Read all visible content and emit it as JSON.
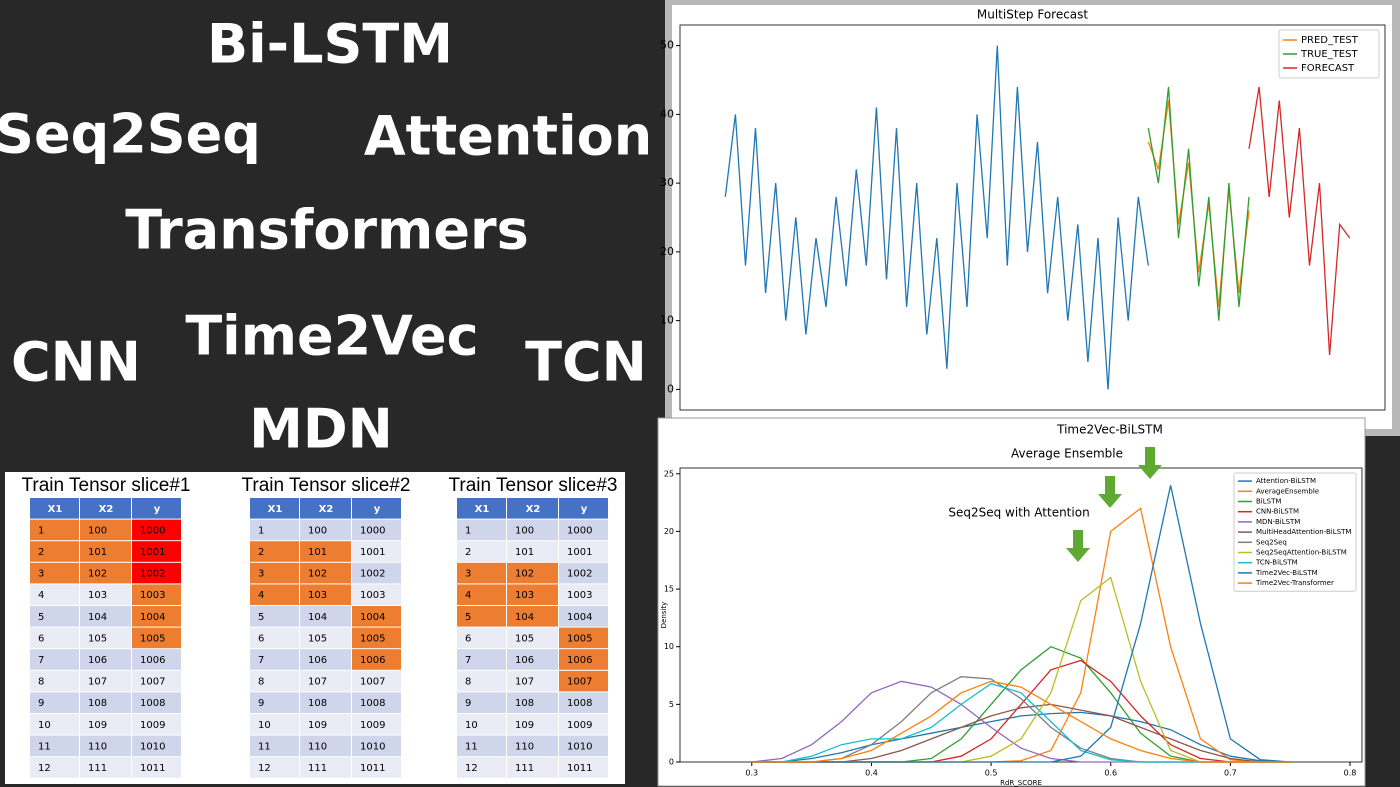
{
  "labels": [
    "Bi-LSTM",
    "Seq2Seq",
    "Attention",
    "Transformers",
    "Time2Vec",
    "CNN",
    "TCN",
    "MDN"
  ],
  "chart_data": [
    {
      "type": "line",
      "title": "MultiStep Forecast",
      "xlim": [
        -45,
        655
      ],
      "ylim": [
        -3,
        53
      ],
      "yticks": [
        0,
        10,
        20,
        30,
        40,
        50
      ],
      "legend": "upper right",
      "series": [
        {
          "color": "#1f77b4",
          "x": [
            0,
            10,
            20,
            30,
            40,
            50,
            60,
            70,
            80,
            90,
            100,
            110,
            120,
            130,
            140,
            150,
            160,
            170,
            180,
            190,
            200,
            210,
            220,
            230,
            240,
            250,
            260,
            270,
            280,
            290,
            300,
            310,
            320,
            330,
            340,
            350,
            360,
            370,
            380,
            390,
            400,
            410,
            420
          ],
          "values": [
            28,
            40,
            18,
            38,
            14,
            30,
            10,
            25,
            8,
            22,
            12,
            28,
            15,
            32,
            18,
            41,
            16,
            38,
            12,
            30,
            8,
            22,
            3,
            30,
            12,
            40,
            22,
            50,
            18,
            44,
            20,
            36,
            14,
            28,
            10,
            24,
            4,
            22,
            0,
            25,
            10,
            28,
            18
          ]
        },
        {
          "name": "PRED_TEST",
          "color": "#ff7f0e",
          "x": [
            420,
            430,
            440,
            450,
            460,
            470,
            480,
            490,
            500,
            510,
            520
          ],
          "values": [
            36,
            32,
            42,
            24,
            33,
            17,
            27,
            12,
            29,
            14,
            26
          ]
        },
        {
          "name": "TRUE_TEST",
          "color": "#2ca02c",
          "x": [
            420,
            430,
            440,
            450,
            460,
            470,
            480,
            490,
            500,
            510,
            520
          ],
          "values": [
            38,
            30,
            44,
            22,
            35,
            15,
            28,
            10,
            30,
            12,
            28
          ]
        },
        {
          "name": "FORECAST",
          "color": "#d62728",
          "x": [
            520,
            530,
            540,
            550,
            560,
            570,
            580,
            590,
            600,
            610,
            620
          ],
          "values": [
            35,
            44,
            28,
            42,
            25,
            38,
            18,
            30,
            5,
            24,
            22
          ]
        }
      ]
    },
    {
      "type": "line",
      "xlabel": "RdR_SCORE",
      "ylabel": "Density",
      "xlim": [
        0.24,
        0.81
      ],
      "ylim": [
        0,
        25.5
      ],
      "xticks": [
        0.3,
        0.4,
        0.5,
        0.6,
        0.7,
        0.8
      ],
      "yticks": [
        0,
        5,
        10,
        15,
        20,
        25
      ],
      "legend": "upper right",
      "annotations": [
        "Time2Vec-BiLSTM",
        "Average Ensemble",
        "Seq2Seq with Attention"
      ],
      "x": [
        0.3,
        0.325,
        0.35,
        0.375,
        0.4,
        0.425,
        0.45,
        0.475,
        0.5,
        0.525,
        0.55,
        0.575,
        0.6,
        0.625,
        0.65,
        0.675,
        0.7,
        0.725,
        0.75
      ],
      "series": [
        {
          "name": "Attention-BiLSTM",
          "color": "#1f77b4",
          "values": [
            0,
            0,
            0.3,
            0.8,
            1.5,
            2,
            2.5,
            3,
            3.5,
            4,
            4.2,
            4.3,
            4,
            3.5,
            2.8,
            1.5,
            0.5,
            0.1,
            0
          ]
        },
        {
          "name": "AverageEnsemble",
          "color": "#ff7f0e",
          "values": [
            0,
            0,
            0,
            0,
            0,
            0,
            0,
            0,
            0,
            0.1,
            1,
            6,
            20,
            22,
            10,
            2,
            0.2,
            0,
            0
          ]
        },
        {
          "name": "BiLSTM",
          "color": "#2ca02c",
          "values": [
            0,
            0,
            0,
            0,
            0,
            0,
            0.3,
            2,
            5,
            8,
            10,
            9,
            6,
            2.5,
            0.5,
            0,
            0,
            0,
            0
          ]
        },
        {
          "name": "CNN-BiLSTM",
          "color": "#d62728",
          "values": [
            0,
            0,
            0,
            0,
            0,
            0,
            0,
            0.5,
            2,
            5,
            8,
            8.8,
            7,
            4,
            1.5,
            0.3,
            0,
            0,
            0
          ]
        },
        {
          "name": "MDN-BiLSTM",
          "color": "#9467bd",
          "values": [
            0,
            0.3,
            1.5,
            3.5,
            6,
            7,
            6.5,
            5,
            3,
            1.2,
            0.3,
            0,
            0,
            0,
            0,
            0,
            0,
            0,
            0
          ]
        },
        {
          "name": "MultiHeadAttention-BiLSTM",
          "color": "#8c564b",
          "values": [
            0,
            0,
            0,
            0,
            0.3,
            1,
            2,
            3,
            4,
            4.7,
            5,
            4.5,
            4,
            3,
            2,
            1,
            0.3,
            0,
            0
          ]
        },
        {
          "name": "Seq2Seq",
          "color": "#7f7f7f",
          "values": [
            0,
            0,
            0,
            0.3,
            1.5,
            3.5,
            6,
            7.4,
            7.2,
            5.5,
            3,
            1.2,
            0.3,
            0,
            0,
            0,
            0,
            0,
            0
          ]
        },
        {
          "name": "Seq2SeqAttention-BiLSTM",
          "color": "#bcbd22",
          "values": [
            0,
            0,
            0,
            0,
            0,
            0,
            0,
            0,
            0.5,
            2,
            6,
            14,
            16,
            7,
            1,
            0,
            0,
            0,
            0
          ]
        },
        {
          "name": "TCN-BiLSTM",
          "color": "#17becf",
          "values": [
            0,
            0,
            0.5,
            1.5,
            2,
            2,
            3,
            5,
            6.8,
            6,
            3.5,
            1,
            0.2,
            0,
            0,
            0,
            0,
            0,
            0
          ]
        },
        {
          "name": "Time2Vec-BiLSTM",
          "color": "#1f77b4",
          "values": [
            0,
            0,
            0,
            0,
            0,
            0,
            0,
            0,
            0,
            0,
            0,
            0.5,
            3,
            12,
            24,
            12,
            2,
            0.2,
            0
          ]
        },
        {
          "name": "Time2Vec-Transformer",
          "color": "#ff7f0e",
          "values": [
            0,
            0,
            0,
            0.3,
            1,
            2.5,
            4,
            6,
            7,
            6.5,
            5,
            3.5,
            2,
            1,
            0.3,
            0,
            0,
            0,
            0
          ]
        }
      ]
    }
  ],
  "tables": [
    {
      "title": "Train Tensor slice#1",
      "header": [
        "X1",
        "X2",
        "y"
      ],
      "input_rows": [
        0,
        1,
        2
      ],
      "target_rows": [
        3,
        4,
        5
      ],
      "red_rows": [
        0,
        1,
        2
      ],
      "rows": [
        [
          "1",
          "100",
          "1000"
        ],
        [
          "2",
          "101",
          "1001"
        ],
        [
          "3",
          "102",
          "1002"
        ],
        [
          "4",
          "103",
          "1003"
        ],
        [
          "5",
          "104",
          "1004"
        ],
        [
          "6",
          "105",
          "1005"
        ],
        [
          "7",
          "106",
          "1006"
        ],
        [
          "8",
          "107",
          "1007"
        ],
        [
          "9",
          "108",
          "1008"
        ],
        [
          "10",
          "109",
          "1009"
        ],
        [
          "11",
          "110",
          "1010"
        ],
        [
          "12",
          "111",
          "1011"
        ]
      ]
    },
    {
      "title": "Train Tensor slice#2",
      "header": [
        "X1",
        "X2",
        "y"
      ],
      "input_rows": [
        1,
        2,
        3
      ],
      "target_rows": [
        4,
        5,
        6
      ],
      "red_rows": [],
      "rows": [
        [
          "1",
          "100",
          "1000"
        ],
        [
          "2",
          "101",
          "1001"
        ],
        [
          "3",
          "102",
          "1002"
        ],
        [
          "4",
          "103",
          "1003"
        ],
        [
          "5",
          "104",
          "1004"
        ],
        [
          "6",
          "105",
          "1005"
        ],
        [
          "7",
          "106",
          "1006"
        ],
        [
          "8",
          "107",
          "1007"
        ],
        [
          "9",
          "108",
          "1008"
        ],
        [
          "10",
          "109",
          "1009"
        ],
        [
          "11",
          "110",
          "1010"
        ],
        [
          "12",
          "111",
          "1011"
        ]
      ]
    },
    {
      "title": "Train Tensor slice#3",
      "header": [
        "X1",
        "X2",
        "y"
      ],
      "input_rows": [
        2,
        3,
        4
      ],
      "target_rows": [
        5,
        6,
        7
      ],
      "red_rows": [],
      "rows": [
        [
          "1",
          "100",
          "1000"
        ],
        [
          "2",
          "101",
          "1001"
        ],
        [
          "3",
          "102",
          "1002"
        ],
        [
          "4",
          "103",
          "1003"
        ],
        [
          "5",
          "104",
          "1004"
        ],
        [
          "6",
          "105",
          "1005"
        ],
        [
          "7",
          "106",
          "1006"
        ],
        [
          "8",
          "107",
          "1007"
        ],
        [
          "9",
          "108",
          "1008"
        ],
        [
          "10",
          "109",
          "1009"
        ],
        [
          "11",
          "110",
          "1010"
        ],
        [
          "12",
          "111",
          "1011"
        ]
      ]
    }
  ]
}
